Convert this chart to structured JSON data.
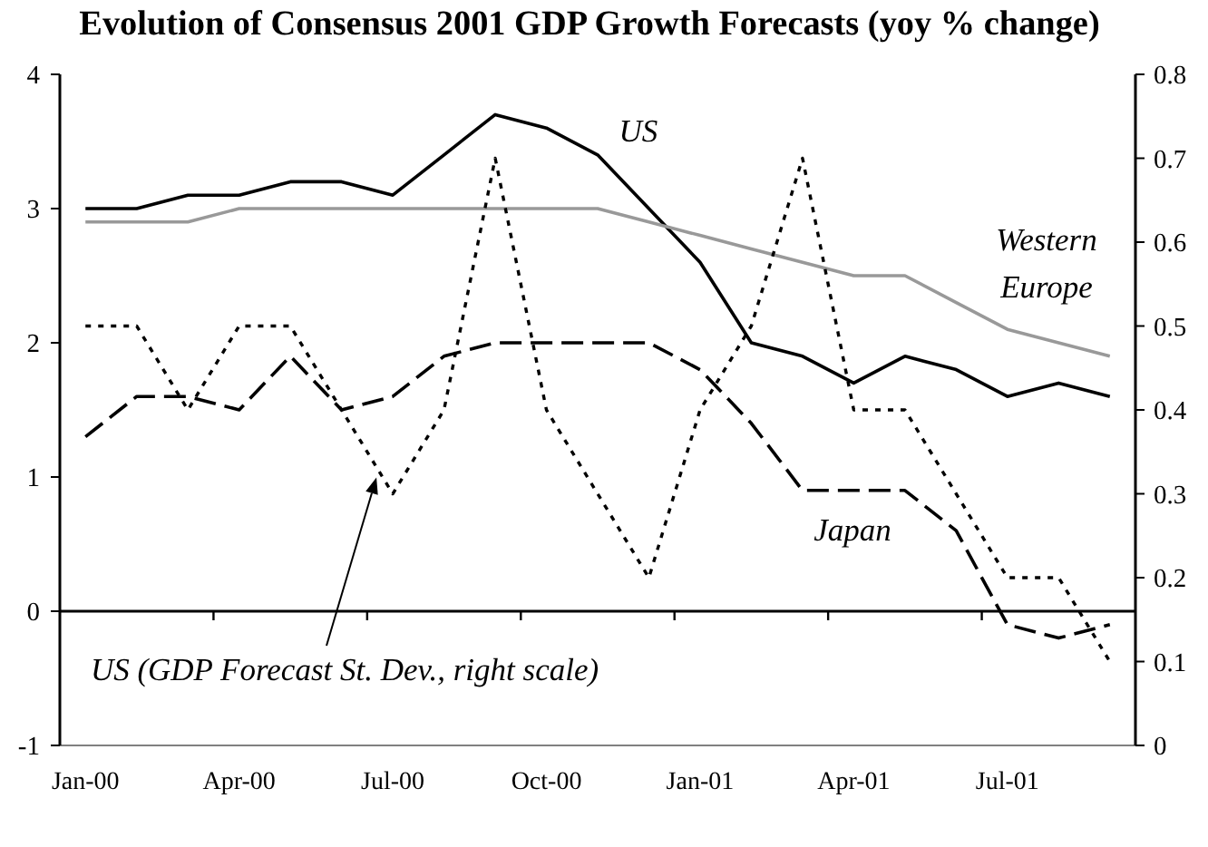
{
  "chart_data": {
    "type": "line",
    "title": "Evolution of Consensus 2001 GDP Growth Forecasts (yoy % change)",
    "categories": [
      "Jan-00",
      null,
      null,
      "Apr-00",
      null,
      null,
      "Jul-00",
      null,
      null,
      "Oct-00",
      null,
      null,
      "Jan-01",
      null,
      null,
      "Apr-01",
      null,
      null,
      "Jul-01",
      null,
      null
    ],
    "series": [
      {
        "name": "US",
        "color": "#000000",
        "line_style": "solid",
        "values": [
          3.0,
          3.0,
          3.1,
          3.1,
          3.2,
          3.2,
          3.1,
          3.4,
          3.7,
          3.6,
          3.4,
          3.0,
          2.6,
          2.0,
          1.9,
          1.7,
          1.9,
          1.8,
          1.6,
          1.7,
          1.6
        ]
      },
      {
        "name": "Western Europe",
        "color": "#999999",
        "line_style": "solid",
        "values": [
          2.9,
          2.9,
          2.9,
          3.0,
          3.0,
          3.0,
          3.0,
          3.0,
          3.0,
          3.0,
          3.0,
          2.9,
          2.8,
          2.7,
          2.6,
          2.5,
          2.5,
          2.3,
          2.1,
          2.0,
          1.9
        ]
      },
      {
        "name": "Japan",
        "color": "#000000",
        "line_style": "dashed",
        "values": [
          1.3,
          1.6,
          1.6,
          1.5,
          1.9,
          1.5,
          1.6,
          1.9,
          2.0,
          2.0,
          2.0,
          2.0,
          1.8,
          1.4,
          0.9,
          0.9,
          0.9,
          0.6,
          -0.1,
          -0.2,
          -0.1
        ]
      },
      {
        "color": "#000000",
        "line_style": "dotted",
        "axis": "y2",
        "values": [
          0.5,
          0.5,
          0.4,
          0.5,
          0.5,
          0.4,
          0.3,
          0.4,
          0.7,
          0.4,
          0.3,
          0.2,
          0.4,
          0.5,
          0.7,
          0.4,
          0.4,
          0.3,
          0.2,
          0.2,
          0.1
        ]
      }
    ],
    "annotations": [
      "US (GDP Forecast St. Dev., right scale)"
    ],
    "ylim": [
      -1,
      4
    ],
    "yticks": [
      -1,
      0,
      1,
      2,
      3,
      4
    ],
    "y2lim": [
      0,
      0.8
    ],
    "y2ticks": [
      0,
      0.1,
      0.2,
      0.3,
      0.4,
      0.5,
      0.6,
      0.7,
      0.8
    ],
    "ref_lines": [
      {
        "axis": "y",
        "value": 0,
        "color": "#000000"
      }
    ],
    "marker": "none"
  }
}
